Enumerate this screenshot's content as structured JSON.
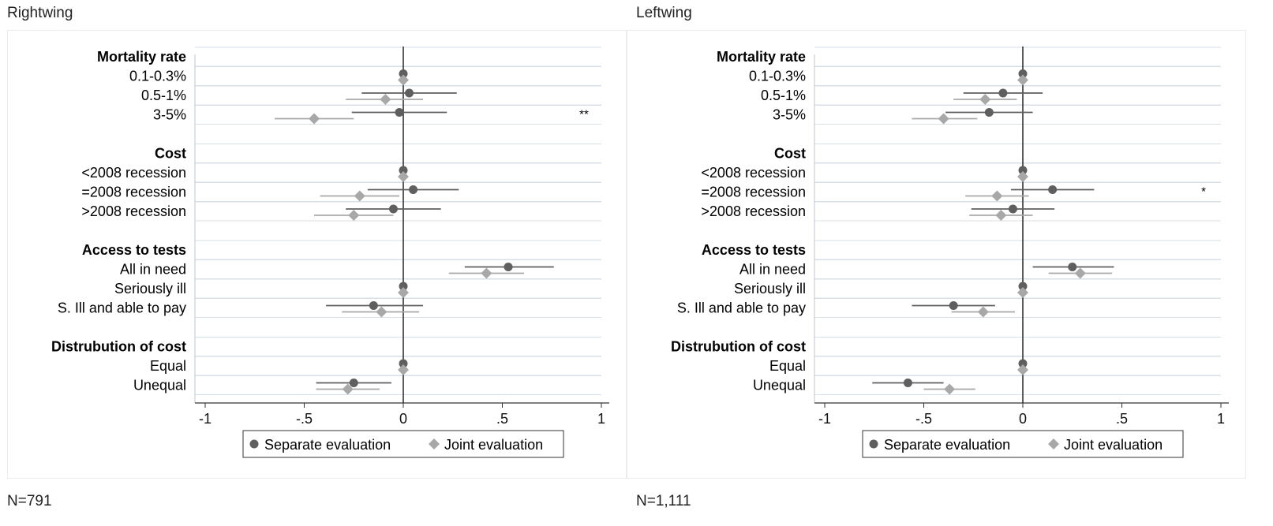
{
  "left_panel": {
    "title": "Rightwing",
    "n_note": "N=791"
  },
  "right_panel": {
    "title": "Leftwing",
    "n_note": "N=1,111"
  },
  "colors": {
    "separate": "#5f5f5f",
    "joint": "#a8a8a8",
    "zero_line": "#333333",
    "grid": "#d9dfe6"
  },
  "chart_data": [
    {
      "type": "scatter",
      "title": "Rightwing",
      "xlim": [
        -1,
        1
      ],
      "x_ticks": [
        "-1",
        "-.5",
        "0",
        ".5",
        "1"
      ],
      "x_tick_values": [
        -1,
        -0.5,
        0,
        0.5,
        1
      ],
      "legend": [
        "Separate evaluation",
        "Joint evaluation"
      ],
      "legend_placement": "bottom",
      "groups": [
        {
          "header": "Mortality rate",
          "rows": [
            {
              "label": "0.1-0.3%",
              "separate": {
                "est": 0,
                "ci": [
                  0,
                  0
                ]
              },
              "joint": {
                "est": 0,
                "ci": [
                  0,
                  0
                ]
              },
              "sig": ""
            },
            {
              "label": "0.5-1%",
              "separate": {
                "est": 0.03,
                "ci": [
                  -0.21,
                  0.27
                ]
              },
              "joint": {
                "est": -0.09,
                "ci": [
                  -0.29,
                  0.1
                ]
              },
              "sig": ""
            },
            {
              "label": "3-5%",
              "separate": {
                "est": -0.02,
                "ci": [
                  -0.26,
                  0.22
                ]
              },
              "joint": {
                "est": -0.45,
                "ci": [
                  -0.65,
                  -0.25
                ]
              },
              "sig": "**"
            }
          ]
        },
        {
          "header": "Cost",
          "rows": [
            {
              "label": "<2008 recession",
              "separate": {
                "est": 0,
                "ci": [
                  0,
                  0
                ]
              },
              "joint": {
                "est": 0,
                "ci": [
                  0,
                  0
                ]
              },
              "sig": ""
            },
            {
              "label": "=2008 recession",
              "separate": {
                "est": 0.05,
                "ci": [
                  -0.18,
                  0.28
                ]
              },
              "joint": {
                "est": -0.22,
                "ci": [
                  -0.42,
                  -0.02
                ]
              },
              "sig": ""
            },
            {
              "label": ">2008 recession",
              "separate": {
                "est": -0.05,
                "ci": [
                  -0.29,
                  0.19
                ]
              },
              "joint": {
                "est": -0.25,
                "ci": [
                  -0.45,
                  -0.05
                ]
              },
              "sig": ""
            }
          ]
        },
        {
          "header": "Access to tests",
          "rows": [
            {
              "label": "All in need",
              "separate": {
                "est": 0.53,
                "ci": [
                  0.31,
                  0.76
                ]
              },
              "joint": {
                "est": 0.42,
                "ci": [
                  0.23,
                  0.61
                ]
              },
              "sig": ""
            },
            {
              "label": "Seriously ill",
              "separate": {
                "est": 0,
                "ci": [
                  0,
                  0
                ]
              },
              "joint": {
                "est": 0,
                "ci": [
                  0,
                  0
                ]
              },
              "sig": ""
            },
            {
              "label": "S. Ill and able to pay",
              "separate": {
                "est": -0.15,
                "ci": [
                  -0.39,
                  0.1
                ]
              },
              "joint": {
                "est": -0.11,
                "ci": [
                  -0.31,
                  0.08
                ]
              },
              "sig": ""
            }
          ]
        },
        {
          "header": "Distrubution of cost",
          "rows": [
            {
              "label": "Equal",
              "separate": {
                "est": 0,
                "ci": [
                  0,
                  0
                ]
              },
              "joint": {
                "est": 0,
                "ci": [
                  0,
                  0
                ]
              },
              "sig": ""
            },
            {
              "label": "Unequal",
              "separate": {
                "est": -0.25,
                "ci": [
                  -0.44,
                  -0.06
                ]
              },
              "joint": {
                "est": -0.28,
                "ci": [
                  -0.44,
                  -0.12
                ]
              },
              "sig": ""
            }
          ]
        }
      ]
    },
    {
      "type": "scatter",
      "title": "Leftwing",
      "xlim": [
        -1,
        1
      ],
      "x_ticks": [
        "-1",
        "-.5",
        "0",
        ".5",
        "1"
      ],
      "x_tick_values": [
        -1,
        -0.5,
        0,
        0.5,
        1
      ],
      "legend": [
        "Separate evaluation",
        "Joint evaluation"
      ],
      "legend_placement": "bottom",
      "groups": [
        {
          "header": "Mortality rate",
          "rows": [
            {
              "label": "0.1-0.3%",
              "separate": {
                "est": 0,
                "ci": [
                  0,
                  0
                ]
              },
              "joint": {
                "est": 0,
                "ci": [
                  0,
                  0
                ]
              },
              "sig": ""
            },
            {
              "label": "0.5-1%",
              "separate": {
                "est": -0.1,
                "ci": [
                  -0.3,
                  0.1
                ]
              },
              "joint": {
                "est": -0.19,
                "ci": [
                  -0.35,
                  -0.03
                ]
              },
              "sig": ""
            },
            {
              "label": "3-5%",
              "separate": {
                "est": -0.17,
                "ci": [
                  -0.39,
                  0.05
                ]
              },
              "joint": {
                "est": -0.4,
                "ci": [
                  -0.56,
                  -0.23
                ]
              },
              "sig": ""
            }
          ]
        },
        {
          "header": "Cost",
          "rows": [
            {
              "label": "<2008 recession",
              "separate": {
                "est": 0,
                "ci": [
                  0,
                  0
                ]
              },
              "joint": {
                "est": 0,
                "ci": [
                  0,
                  0
                ]
              },
              "sig": ""
            },
            {
              "label": "=2008 recession",
              "separate": {
                "est": 0.15,
                "ci": [
                  -0.06,
                  0.36
                ]
              },
              "joint": {
                "est": -0.13,
                "ci": [
                  -0.29,
                  0.03
                ]
              },
              "sig": "*"
            },
            {
              "label": ">2008 recession",
              "separate": {
                "est": -0.05,
                "ci": [
                  -0.26,
                  0.16
                ]
              },
              "joint": {
                "est": -0.11,
                "ci": [
                  -0.27,
                  0.05
                ]
              },
              "sig": ""
            }
          ]
        },
        {
          "header": "Access to tests",
          "rows": [
            {
              "label": "All in need",
              "separate": {
                "est": 0.25,
                "ci": [
                  0.05,
                  0.46
                ]
              },
              "joint": {
                "est": 0.29,
                "ci": [
                  0.13,
                  0.45
                ]
              },
              "sig": ""
            },
            {
              "label": "Seriously ill",
              "separate": {
                "est": 0,
                "ci": [
                  0,
                  0
                ]
              },
              "joint": {
                "est": 0,
                "ci": [
                  0,
                  0
                ]
              },
              "sig": ""
            },
            {
              "label": "S. Ill and able to pay",
              "separate": {
                "est": -0.35,
                "ci": [
                  -0.56,
                  -0.14
                ]
              },
              "joint": {
                "est": -0.2,
                "ci": [
                  -0.36,
                  -0.04
                ]
              },
              "sig": ""
            }
          ]
        },
        {
          "header": "Distrubution of cost",
          "rows": [
            {
              "label": "Equal",
              "separate": {
                "est": 0,
                "ci": [
                  0,
                  0
                ]
              },
              "joint": {
                "est": 0,
                "ci": [
                  0,
                  0
                ]
              },
              "sig": ""
            },
            {
              "label": "Unequal",
              "separate": {
                "est": -0.58,
                "ci": [
                  -0.76,
                  -0.4
                ]
              },
              "joint": {
                "est": -0.37,
                "ci": [
                  -0.5,
                  -0.24
                ]
              },
              "sig": ""
            }
          ]
        }
      ]
    }
  ]
}
